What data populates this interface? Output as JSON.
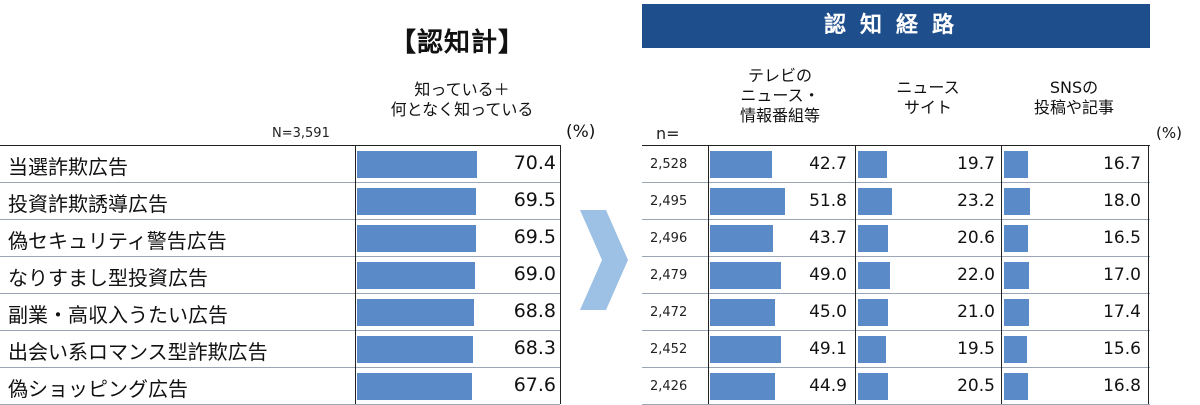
{
  "left_title": "【認知計】",
  "right_header": "認知経路",
  "left_col_header": [
    "知っている＋",
    "何となく知っている"
  ],
  "n_total": "N=3,591",
  "unit": "(%)",
  "n_label": "n=",
  "route_headers": [
    [
      "テレビの",
      "ニュース・",
      "情報番組等"
    ],
    [
      "ニュース",
      "サイト"
    ],
    [
      "SNSの",
      "投稿や記事"
    ]
  ],
  "colors": {
    "bar": "#5b8ac8",
    "header": "#1f4e8c",
    "arrow": "#9dc1e4"
  },
  "chart_data": {
    "type": "bar",
    "categories": [
      "当選詐欺広告",
      "投資詐欺誘導広告",
      "偽セキュリティ警告広告",
      "なりすまし型投資広告",
      "副業・高収入うたい広告",
      "出会い系ロマンス型詐欺広告",
      "偽ショッピング広告"
    ],
    "awareness": [
      70.4,
      69.5,
      69.5,
      69.0,
      68.8,
      68.3,
      67.6
    ],
    "awareness_labels": [
      "70.4",
      "69.5",
      "69.5",
      "69.0",
      "68.8",
      "68.3",
      "67.6"
    ],
    "n": [
      "2,528",
      "2,495",
      "2,496",
      "2,479",
      "2,472",
      "2,452",
      "2,426"
    ],
    "series": [
      {
        "values": [
          42.7,
          51.8,
          43.7,
          49.0,
          45.0,
          49.1,
          44.9
        ],
        "labels": [
          "42.7",
          "51.8",
          "43.7",
          "49.0",
          "45.0",
          "49.1",
          "44.9"
        ]
      },
      {
        "values": [
          19.7,
          23.2,
          20.6,
          22.0,
          21.0,
          19.5,
          20.5
        ],
        "labels": [
          "19.7",
          "23.2",
          "20.6",
          "22.0",
          "21.0",
          "19.5",
          "20.5"
        ]
      },
      {
        "values": [
          16.7,
          18.0,
          16.5,
          17.0,
          17.4,
          15.6,
          16.8
        ],
        "labels": [
          "16.7",
          "18.0",
          "16.5",
          "17.0",
          "17.4",
          "15.6",
          "16.8"
        ]
      }
    ]
  }
}
